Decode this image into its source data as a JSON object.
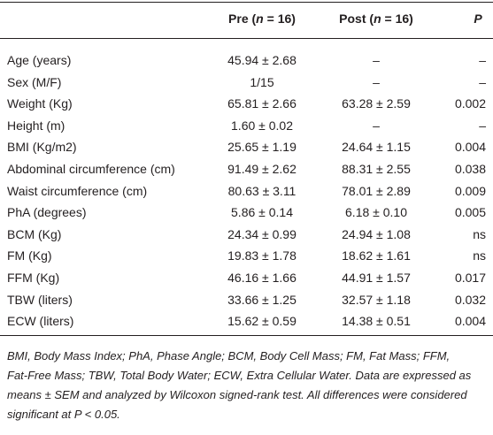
{
  "table": {
    "header": {
      "pre": [
        "Pre (",
        "n",
        " = 16)"
      ],
      "post": [
        "Post (",
        "n",
        " = 16)"
      ],
      "p": "P"
    },
    "rows": [
      [
        "Age (years)",
        "45.94 ± 2.68",
        "–",
        "–"
      ],
      [
        "Sex (M/F)",
        "1/15",
        "–",
        "–"
      ],
      [
        "Weight (Kg)",
        "65.81 ± 2.66",
        "63.28 ± 2.59",
        "0.002"
      ],
      [
        "Height (m)",
        "1.60 ± 0.02",
        "–",
        "–"
      ],
      [
        "BMI (Kg/m2)",
        "25.65 ± 1.19",
        "24.64 ± 1.15",
        "0.004"
      ],
      [
        "Abdominal circumference (cm)",
        "91.49 ± 2.62",
        "88.31 ± 2.55",
        "0.038"
      ],
      [
        "Waist circumference (cm)",
        "80.63 ± 3.11",
        "78.01 ± 2.89",
        "0.009"
      ],
      [
        "PhA (degrees)",
        "5.86 ± 0.14",
        "6.18 ± 0.10",
        "0.005"
      ],
      [
        "BCM (Kg)",
        "24.34 ± 0.99",
        "24.94 ± 1.08",
        "ns"
      ],
      [
        "FM (Kg)",
        "19.83 ± 1.78",
        "18.62 ± 1.61",
        "ns"
      ],
      [
        "FFM (Kg)",
        "46.16 ± 1.66",
        "44.91 ± 1.57",
        "0.017"
      ],
      [
        "TBW (liters)",
        "33.66 ± 1.25",
        "32.57 ± 1.18",
        "0.032"
      ],
      [
        "ECW (liters)",
        "15.62 ± 0.59",
        "14.38 ± 0.51",
        "0.004"
      ]
    ],
    "footnote": [
      "BMI, Body Mass Index; PhA, Phase Angle; BCM, Body Cell Mass; FM, Fat Mass; FFM,",
      "Fat-Free Mass; TBW, Total Body Water; ECW, Extra Cellular Water. Data are expressed as",
      "means ± SEM and analyzed by Wilcoxon signed-rank test. All differences were considered",
      "significant at P < 0.05."
    ]
  }
}
